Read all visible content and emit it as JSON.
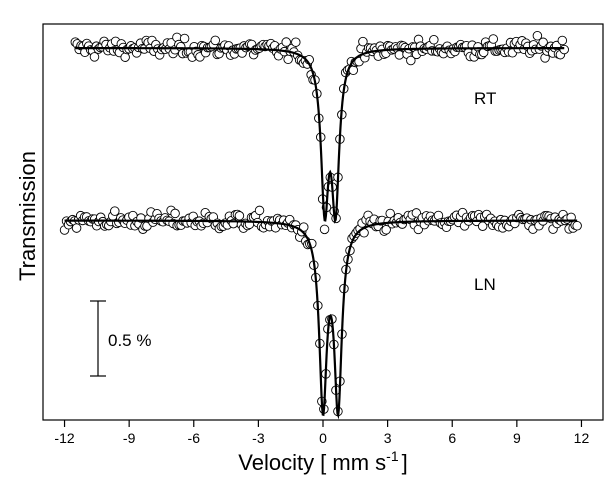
{
  "chart_data": {
    "type": "scatter",
    "title": "",
    "xlabel": "Velocity [ mm s",
    "xlabel_sup": "-1",
    "xlabel_end": "]",
    "ylabel": "Transmission",
    "xlim": [
      -13,
      13
    ],
    "xticks": [
      -12,
      -9,
      -6,
      -3,
      0,
      3,
      6,
      9,
      12
    ],
    "xtick_labels": [
      "-12",
      "-9",
      "-6",
      "-3",
      "0",
      "3",
      "6",
      "9",
      "12"
    ],
    "y_axis_ticks": false,
    "grid": false,
    "scale_bar": {
      "label": "0.5 %",
      "length_percent": 0.5
    },
    "series": [
      {
        "name": "RT",
        "baseline": 0,
        "x_range": [
          -11.5,
          11.2
        ],
        "doublet": {
          "center_mm_s": 0.33,
          "splitting_mm_s": 0.5,
          "linewidth_mm_s": 0.42,
          "peak_depth_percent": 1.0
        },
        "noise_percent": 0.03,
        "marker": "open-circle",
        "fit_line": true
      },
      {
        "name": "LN",
        "baseline": -1.15,
        "x_range": [
          -12.0,
          11.8
        ],
        "doublet": {
          "center_mm_s": 0.35,
          "splitting_mm_s": 0.7,
          "linewidth_mm_s": 0.42,
          "peak_depth_percent": 1.2
        },
        "noise_percent": 0.03,
        "marker": "open-circle",
        "fit_line": true
      }
    ],
    "colors": {
      "axis": "#000000",
      "marker_fill": "#ffffff",
      "marker_stroke": "#000000",
      "fit": "#000000"
    }
  }
}
